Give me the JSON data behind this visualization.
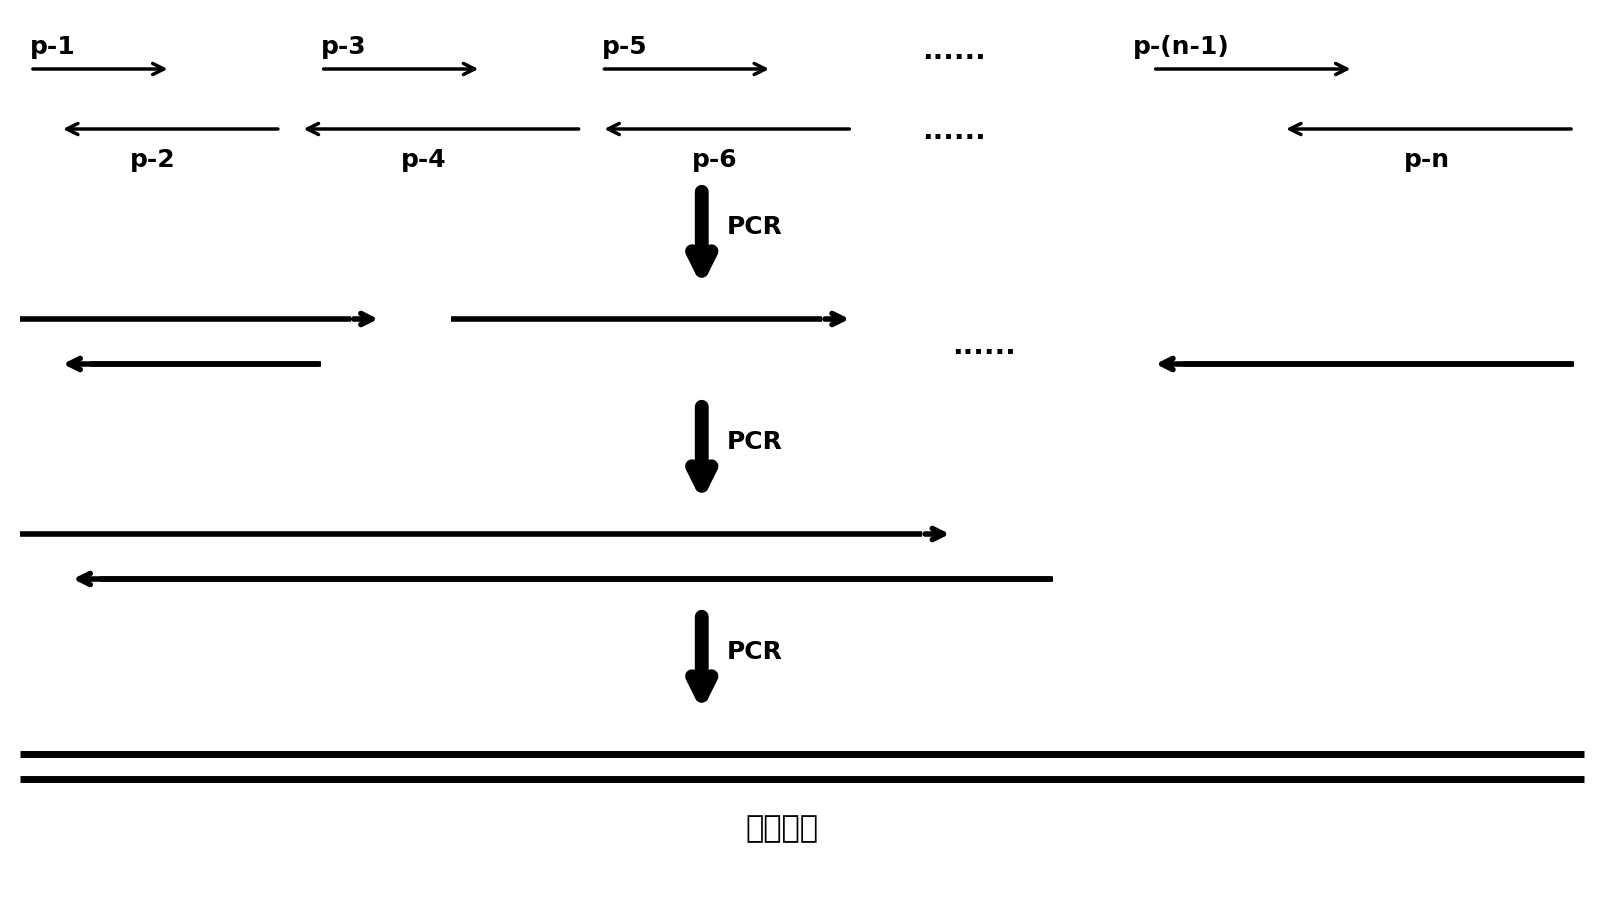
{
  "bg_color": "#ffffff",
  "fig_width": 16.04,
  "fig_height": 9.19,
  "dpi": 100,
  "arrow_color": "#000000",
  "line_color": "#000000",
  "text_color": "#000000",
  "pcr_labels": [
    "PCR",
    "PCR",
    "PCR"
  ],
  "pcr_label_fontsize": 18,
  "primer_label_fontsize": 18,
  "final_label": "全长基因",
  "final_label_fontsize": 22,
  "dots": "......",
  "dots2": "......",
  "dots3": "......"
}
